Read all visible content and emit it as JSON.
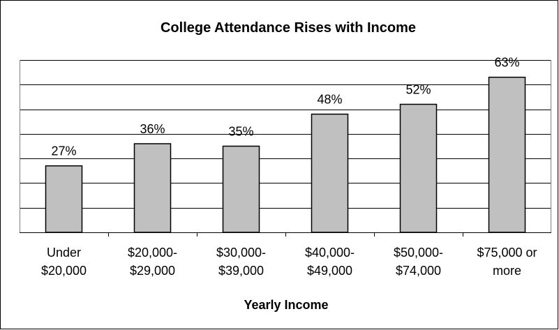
{
  "chart_data": {
    "type": "bar",
    "title": "College Attendance Rises with Income",
    "xlabel": "Yearly Income",
    "ylabel": "",
    "categories": [
      [
        "Under",
        "$20,000"
      ],
      [
        "$20,000-",
        "$29,000"
      ],
      [
        "$30,000-",
        "$39,000"
      ],
      [
        "$40,000-",
        "$49,000"
      ],
      [
        "$50,000-",
        "$74,000"
      ],
      [
        "$75,000 or",
        "more"
      ]
    ],
    "values": [
      27,
      36,
      35,
      48,
      52,
      63
    ],
    "value_labels": [
      "27%",
      "36%",
      "35%",
      "48%",
      "52%",
      "63%"
    ],
    "ylim": [
      0,
      70
    ],
    "grid": true,
    "legend": "none",
    "colors": {
      "bar_fill": "#c0c0c0",
      "bar_stroke": "#000000",
      "grid": "#000000",
      "frame": "#000000",
      "plot_border": "#808080"
    }
  }
}
